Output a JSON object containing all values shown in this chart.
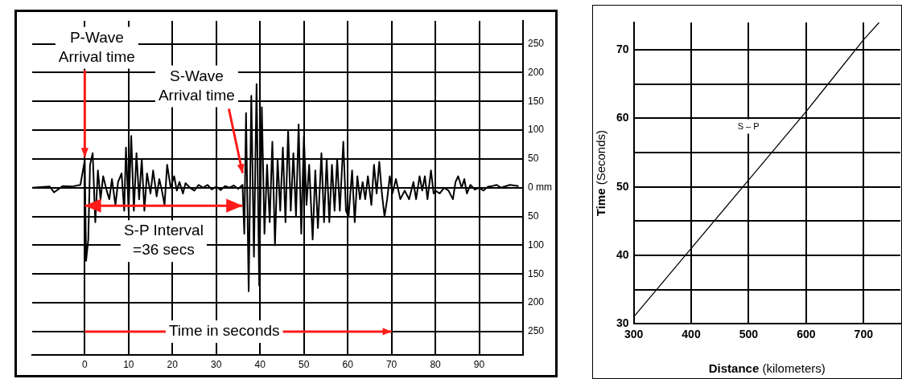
{
  "chart_data": [
    {
      "type": "line",
      "xlabel": "Time in seconds",
      "xlim": [
        -12,
        100
      ],
      "ylim": [
        -290,
        290
      ],
      "xticks": [
        0,
        10,
        20,
        30,
        40,
        50,
        60,
        70,
        80,
        90
      ],
      "yticks": [
        {
          "value": -250,
          "label": "250"
        },
        {
          "value": -200,
          "label": "200"
        },
        {
          "value": -150,
          "label": "150"
        },
        {
          "value": -100,
          "label": "100"
        },
        {
          "value": -50,
          "label": "50"
        },
        {
          "value": 0,
          "label": "0 mm"
        },
        50,
        100,
        150,
        200,
        250
      ],
      "grid": true,
      "legend": false,
      "marker": "none",
      "line_style": "solid",
      "annotations": [
        {
          "text": "P-Wave\nArrival time",
          "x": 0,
          "y": 48
        },
        {
          "text": "S-Wave\nArrival time",
          "x": 36,
          "y": 20
        },
        {
          "text": "S-P Interval\n=36 secs",
          "x": 18,
          "y": -20
        }
      ],
      "series": [
        {
          "color": "#000000",
          "x": [
            -12,
            -8,
            -7,
            -5,
            -3,
            -1,
            0,
            0.3,
            0.8,
            1.2,
            1.8,
            2.4,
            3,
            3.6,
            4.2,
            5,
            5.6,
            6.2,
            7,
            7.6,
            8.4,
            9,
            9.4,
            10,
            10.6,
            11.2,
            11.8,
            12.4,
            13,
            13.6,
            14.2,
            15,
            15.6,
            16.4,
            17,
            17.6,
            18.2,
            18.8,
            19.6,
            20.4,
            21,
            21.6,
            22.4,
            23,
            24,
            25,
            26,
            27,
            28,
            29,
            30,
            31,
            32,
            33,
            34,
            35,
            36,
            36.4,
            36.8,
            37.4,
            38,
            38.6,
            39.2,
            39.8,
            40.4,
            41,
            41.6,
            42.2,
            42.8,
            43.4,
            44,
            44.6,
            45.2,
            45.8,
            46.4,
            47,
            47.6,
            48.2,
            48.8,
            49.4,
            50,
            50.6,
            51.2,
            52,
            52.6,
            53.2,
            54,
            54.6,
            55.2,
            55.8,
            56.4,
            57,
            57.6,
            58.2,
            59,
            59.6,
            60.2,
            61,
            61.6,
            62.2,
            62.8,
            63.4,
            64,
            64.6,
            65.4,
            66,
            66.6,
            67.2,
            67.8,
            68.4,
            69,
            69.6,
            70.2,
            71,
            72,
            73,
            74,
            75,
            75.6,
            76.4,
            77,
            77.6,
            78.2,
            79,
            79.6,
            80,
            81,
            82,
            83,
            84,
            84.6,
            85.2,
            86,
            86.6,
            87.2,
            88,
            89,
            90,
            91,
            92,
            93,
            94,
            95,
            97,
            99
          ],
          "values": [
            0,
            2,
            -8,
            3,
            2,
            5,
            48,
            -127,
            -90,
            40,
            60,
            -60,
            30,
            -20,
            20,
            -5,
            -20,
            15,
            -30,
            10,
            25,
            -40,
            70,
            -40,
            90,
            -40,
            60,
            -20,
            50,
            -40,
            25,
            -10,
            30,
            -15,
            15,
            -5,
            -30,
            40,
            0,
            20,
            -5,
            10,
            -10,
            8,
            0,
            -5,
            5,
            0,
            5,
            -3,
            2,
            -4,
            3,
            0,
            4,
            -2,
            5,
            -80,
            130,
            -180,
            160,
            -120,
            180,
            -170,
            140,
            -80,
            40,
            -60,
            80,
            -100,
            50,
            -40,
            70,
            -60,
            100,
            -40,
            60,
            -50,
            110,
            -80,
            90,
            -30,
            40,
            -90,
            30,
            -70,
            60,
            -60,
            50,
            -60,
            40,
            -40,
            50,
            -40,
            80,
            -40,
            -50,
            30,
            -60,
            20,
            -20,
            10,
            -20,
            20,
            -30,
            40,
            -10,
            45,
            -10,
            -50,
            -20,
            20,
            -10,
            15,
            -20,
            -5,
            -20,
            10,
            -20,
            20,
            -5,
            20,
            -20,
            30,
            -10,
            -5,
            -10,
            0,
            -5,
            -20,
            10,
            20,
            0,
            15,
            -10,
            5,
            -3,
            0,
            -5,
            2,
            3,
            5,
            0,
            5,
            3
          ]
        }
      ]
    },
    {
      "type": "line",
      "xlabel": "Distance (kilometers)",
      "ylabel": "Time (Seconds)",
      "xlim": [
        300,
        764
      ],
      "ylim": [
        30,
        74
      ],
      "xticks": [
        300,
        400,
        500,
        600,
        700
      ],
      "yticks": [
        30,
        {
          "value": 35,
          "label": null
        },
        40,
        {
          "value": 45,
          "label": null
        },
        50,
        {
          "value": 55,
          "label": null
        },
        60,
        {
          "value": 65,
          "label": null
        },
        70
      ],
      "grid": true,
      "legend": false,
      "marker": "none",
      "line_style": "solid",
      "series": [
        {
          "name": "S – P",
          "color": "#000000",
          "x": [
            300,
            400,
            500,
            600,
            700,
            727
          ],
          "values": [
            31,
            41,
            51,
            61,
            71.5,
            74
          ]
        }
      ]
    }
  ]
}
